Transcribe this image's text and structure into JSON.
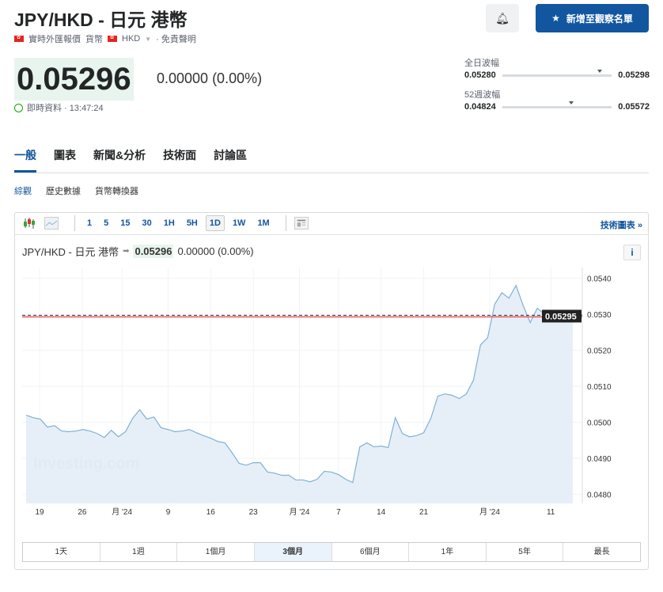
{
  "header": {
    "title": "JPY/HKD - 日元 港幣",
    "meta_realtime": "實時外匯報價",
    "meta_currency": "貨幣",
    "meta_hkd": "HKD",
    "meta_disclaimer": "· 免責聲明",
    "bell_icon": "bell-plus-icon",
    "watchlist_label": "新增至觀察名單"
  },
  "quote": {
    "price": "0.05296",
    "change": "0.00000 (0.00%)",
    "time": "即時資料 · 13:47:24"
  },
  "ranges": {
    "day_label": "全日波幅",
    "day_low": "0.05280",
    "day_high": "0.05298",
    "day_pos": 0.89,
    "wk52_label": "52週波幅",
    "wk52_low": "0.04824",
    "wk52_high": "0.05572",
    "wk52_pos": 0.63
  },
  "tabs": [
    {
      "label": "一般",
      "active": true
    },
    {
      "label": "圖表"
    },
    {
      "label": "新聞&分析"
    },
    {
      "label": "技術面"
    },
    {
      "label": "討論區"
    }
  ],
  "subtabs": [
    {
      "label": "綜觀",
      "active": true
    },
    {
      "label": "歷史數據"
    },
    {
      "label": "貨幣轉換器"
    }
  ],
  "toolbar": {
    "intervals": [
      "1",
      "5",
      "15",
      "30",
      "1H",
      "5H",
      "1D",
      "1W",
      "1M"
    ],
    "active": "1D",
    "tech_chart": "技術圖表 »"
  },
  "chart_header": {
    "name": "JPY/HKD - 日元 港幣",
    "price": "0.05296",
    "change": "0.00000 (0.00%)",
    "info": "i"
  },
  "period_buttons": [
    "1天",
    "1週",
    "1個月",
    "3個月",
    "6個月",
    "1年",
    "5年",
    "最長"
  ],
  "period_active": "3個月",
  "colors": {
    "accent": "#1256a0",
    "line": "#7fb0d8",
    "fill": "#e3edf6",
    "current_line": "#e8545a"
  },
  "chart_data": {
    "type": "area",
    "watermark": "Investing.com",
    "values": [
      0.0502,
      0.05013,
      0.05009,
      0.04987,
      0.04991,
      0.04976,
      0.04974,
      0.04976,
      0.0498,
      0.04976,
      0.04969,
      0.04958,
      0.04978,
      0.0496,
      0.04974,
      0.05011,
      0.05035,
      0.05009,
      0.05015,
      0.04985,
      0.0498,
      0.04974,
      0.04976,
      0.0498,
      0.04971,
      0.04963,
      0.04956,
      0.04947,
      0.04943,
      0.04916,
      0.04886,
      0.04881,
      0.04888,
      0.04888,
      0.04862,
      0.04859,
      0.04853,
      0.04853,
      0.0484,
      0.0484,
      0.04835,
      0.04842,
      0.04864,
      0.04862,
      0.04855,
      0.04842,
      0.04833,
      0.04932,
      0.04943,
      0.04932,
      0.04934,
      0.0493,
      0.05013,
      0.04969,
      0.0496,
      0.04963,
      0.04971,
      0.05011,
      0.05073,
      0.05079,
      0.05075,
      0.05066,
      0.05079,
      0.05117,
      0.05215,
      0.05235,
      0.05328,
      0.0536,
      0.05345,
      0.0538,
      0.05325,
      0.05277,
      0.05317,
      0.05301,
      0.05299,
      0.05299,
      0.0529,
      0.05295
    ],
    "x_ticks": [
      {
        "label": "19",
        "at": 1.9
      },
      {
        "label": "26",
        "at": 7.9
      },
      {
        "label": "月 '24",
        "at": 13.5
      },
      {
        "label": "9",
        "at": 20
      },
      {
        "label": "16",
        "at": 26
      },
      {
        "label": "23",
        "at": 32
      },
      {
        "label": "月 '24",
        "at": 38.5
      },
      {
        "label": "7",
        "at": 44
      },
      {
        "label": "14",
        "at": 50
      },
      {
        "label": "21",
        "at": 56
      },
      {
        "label": "月 '24",
        "at": 65.3
      },
      {
        "label": "11",
        "at": 73.9
      }
    ],
    "y_ticks": [
      "0.0540",
      "0.0530",
      "0.0520",
      "0.0510",
      "0.0500",
      "0.0490",
      "0.0480"
    ],
    "y_tick_values": [
      0.054,
      0.053,
      0.052,
      0.051,
      0.05,
      0.049,
      0.048
    ],
    "ylim": [
      0.04775,
      0.0543
    ],
    "current": 0.05295,
    "current_label": "0.05295",
    "grid": true
  }
}
